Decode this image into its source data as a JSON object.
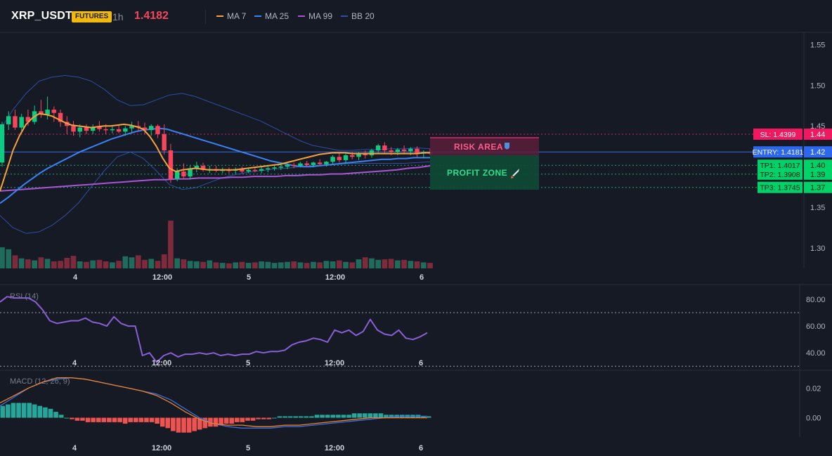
{
  "header": {
    "symbol": "XRP_USDT",
    "badge": "FUTURES",
    "timeframe": "1h",
    "last_price": "1.4182",
    "indicators": [
      {
        "label": "MA 7",
        "color": "#f7a23b"
      },
      {
        "label": "MA 25",
        "color": "#3b82f6"
      },
      {
        "label": "MA 99",
        "color": "#a855d6"
      },
      {
        "label": "BB 20",
        "color": "#2d4fa3"
      }
    ]
  },
  "colors": {
    "up": "#0ecb81",
    "down": "#f6465d",
    "volume_up": "#1f6b5c",
    "volume_down": "#7d2a3a",
    "rsi": "#8a5fd6",
    "macd": "#3b6fe0",
    "signal": "#f0822a"
  },
  "zones": {
    "risk_label": "RISK AREA",
    "profit_label": "PROFIT ZONE"
  },
  "price_tags": [
    {
      "id": "sl",
      "label": "SL: 1.4399",
      "axis": "1.44",
      "price": 1.4399,
      "color": "#f0195f"
    },
    {
      "id": "entry",
      "label": "ENTRY: 1.4181",
      "axis": "1.42",
      "price": 1.4181,
      "color": "#2d67f0"
    },
    {
      "id": "tp1",
      "label": "TP1: 1.4017",
      "axis": "1.40",
      "price": 1.4017,
      "color": "#00d26a"
    },
    {
      "id": "tp2",
      "label": "TP2: 1.3908",
      "axis": "1.39",
      "price": 1.3908,
      "color": "#00d26a"
    },
    {
      "id": "tp3",
      "label": "TP3: 1.3745",
      "axis": "1.37",
      "price": 1.3745,
      "color": "#00d26a"
    }
  ],
  "chart_data": [
    {
      "type": "candlestick",
      "pane": "price",
      "title": "",
      "x_ticks": [
        "4",
        "12:00",
        "5",
        "12:00",
        "6"
      ],
      "y_ticks": [
        "1.55",
        "1.50",
        "1.45",
        "1.40",
        "1.35",
        "1.30"
      ],
      "ylim": [
        1.275,
        1.565
      ],
      "candles_ohlc": [
        [
          1.405,
          1.455,
          1.4,
          1.452
        ],
        [
          1.452,
          1.468,
          1.445,
          1.462
        ],
        [
          1.462,
          1.47,
          1.445,
          1.448
        ],
        [
          1.448,
          1.465,
          1.444,
          1.461
        ],
        [
          1.461,
          1.47,
          1.45,
          1.455
        ],
        [
          1.455,
          1.475,
          1.452,
          1.468
        ],
        [
          1.468,
          1.482,
          1.46,
          1.464
        ],
        [
          1.464,
          1.486,
          1.458,
          1.47
        ],
        [
          1.47,
          1.474,
          1.455,
          1.466
        ],
        [
          1.466,
          1.47,
          1.449,
          1.455
        ],
        [
          1.455,
          1.462,
          1.44,
          1.45
        ],
        [
          1.45,
          1.456,
          1.438,
          1.443
        ],
        [
          1.443,
          1.452,
          1.436,
          1.448
        ],
        [
          1.448,
          1.452,
          1.44,
          1.444
        ],
        [
          1.444,
          1.452,
          1.44,
          1.449
        ],
        [
          1.449,
          1.456,
          1.443,
          1.446
        ],
        [
          1.446,
          1.452,
          1.44,
          1.445
        ],
        [
          1.445,
          1.451,
          1.441,
          1.446
        ],
        [
          1.446,
          1.451,
          1.441,
          1.443
        ],
        [
          1.443,
          1.45,
          1.438,
          1.447
        ],
        [
          1.447,
          1.455,
          1.442,
          1.45
        ],
        [
          1.45,
          1.456,
          1.444,
          1.448
        ],
        [
          1.448,
          1.454,
          1.44,
          1.445
        ],
        [
          1.445,
          1.452,
          1.438,
          1.45
        ],
        [
          1.45,
          1.452,
          1.435,
          1.44
        ],
        [
          1.44,
          1.452,
          1.415,
          1.42
        ],
        [
          1.42,
          1.428,
          1.38,
          1.385
        ],
        [
          1.385,
          1.398,
          1.382,
          1.394
        ],
        [
          1.394,
          1.404,
          1.385,
          1.388
        ],
        [
          1.388,
          1.401,
          1.384,
          1.398
        ],
        [
          1.398,
          1.406,
          1.393,
          1.401
        ],
        [
          1.401,
          1.405,
          1.394,
          1.396
        ],
        [
          1.396,
          1.401,
          1.392,
          1.397
        ],
        [
          1.397,
          1.401,
          1.393,
          1.395
        ],
        [
          1.395,
          1.399,
          1.392,
          1.396
        ],
        [
          1.396,
          1.399,
          1.392,
          1.395
        ],
        [
          1.395,
          1.399,
          1.391,
          1.397
        ],
        [
          1.397,
          1.4,
          1.392,
          1.394
        ],
        [
          1.394,
          1.399,
          1.392,
          1.396
        ],
        [
          1.396,
          1.399,
          1.393,
          1.395
        ],
        [
          1.395,
          1.4,
          1.392,
          1.397
        ],
        [
          1.397,
          1.4,
          1.393,
          1.398
        ],
        [
          1.398,
          1.401,
          1.395,
          1.399
        ],
        [
          1.399,
          1.403,
          1.396,
          1.4
        ],
        [
          1.4,
          1.404,
          1.397,
          1.402
        ],
        [
          1.402,
          1.405,
          1.398,
          1.401
        ],
        [
          1.401,
          1.406,
          1.399,
          1.404
        ],
        [
          1.404,
          1.407,
          1.4,
          1.402
        ],
        [
          1.402,
          1.406,
          1.399,
          1.405
        ],
        [
          1.405,
          1.409,
          1.402,
          1.403
        ],
        [
          1.403,
          1.407,
          1.4,
          1.406
        ],
        [
          1.406,
          1.414,
          1.403,
          1.412
        ],
        [
          1.412,
          1.418,
          1.405,
          1.408
        ],
        [
          1.408,
          1.416,
          1.404,
          1.414
        ],
        [
          1.414,
          1.418,
          1.409,
          1.412
        ],
        [
          1.412,
          1.418,
          1.408,
          1.416
        ],
        [
          1.416,
          1.42,
          1.41,
          1.414
        ],
        [
          1.414,
          1.422,
          1.411,
          1.42
        ],
        [
          1.42,
          1.428,
          1.416,
          1.426
        ],
        [
          1.426,
          1.43,
          1.417,
          1.42
        ],
        [
          1.42,
          1.424,
          1.414,
          1.418
        ],
        [
          1.418,
          1.423,
          1.414,
          1.421
        ],
        [
          1.421,
          1.426,
          1.416,
          1.419
        ],
        [
          1.419,
          1.424,
          1.414,
          1.422
        ],
        [
          1.422,
          1.425,
          1.412,
          1.416
        ],
        [
          1.416,
          1.42,
          1.41,
          1.418
        ],
        [
          1.418,
          1.422,
          1.414,
          1.416
        ]
      ],
      "volume": [
        42,
        38,
        26,
        20,
        18,
        16,
        22,
        19,
        14,
        15,
        21,
        25,
        14,
        13,
        16,
        17,
        14,
        12,
        15,
        24,
        22,
        26,
        17,
        19,
        15,
        28,
        95,
        20,
        18,
        15,
        14,
        13,
        16,
        12,
        11,
        10,
        12,
        13,
        11,
        12,
        14,
        13,
        11,
        12,
        13,
        14,
        12,
        11,
        13,
        12,
        15,
        14,
        16,
        13,
        12,
        18,
        22,
        20,
        17,
        18,
        19,
        16,
        17,
        15,
        14,
        12,
        11
      ],
      "series": [
        {
          "name": "MA 7",
          "values": [
            1.37,
            1.395,
            1.42,
            1.438,
            1.452,
            1.46,
            1.465,
            1.464,
            1.462,
            1.458,
            1.454,
            1.451,
            1.45,
            1.449,
            1.448,
            1.449,
            1.45,
            1.45,
            1.451,
            1.452,
            1.451,
            1.449,
            1.446,
            1.437,
            1.425,
            1.41,
            1.398,
            1.394,
            1.396,
            1.397,
            1.398,
            1.397,
            1.396,
            1.396,
            1.396,
            1.396,
            1.396,
            1.397,
            1.398,
            1.399,
            1.4,
            1.401,
            1.402,
            1.403,
            1.405,
            1.407,
            1.409,
            1.411,
            1.413,
            1.415,
            1.416,
            1.417,
            1.417,
            1.417,
            1.416,
            1.416,
            1.416,
            1.416,
            1.416,
            1.416,
            1.416,
            1.416,
            1.416,
            1.416,
            1.416,
            1.417,
            1.417
          ]
        },
        {
          "name": "MA 25",
          "values": [
            1.355,
            1.362,
            1.37,
            1.378,
            1.385,
            1.392,
            1.398,
            1.403,
            1.408,
            1.413,
            1.418,
            1.422,
            1.426,
            1.43,
            1.434,
            1.437,
            1.44,
            1.443,
            1.445,
            1.446,
            1.447,
            1.446,
            1.443,
            1.44,
            1.437,
            1.434,
            1.431,
            1.428,
            1.425,
            1.422,
            1.419,
            1.416,
            1.413,
            1.41,
            1.407,
            1.405,
            1.403,
            1.401,
            1.4,
            1.4,
            1.401,
            1.402,
            1.403,
            1.404,
            1.405,
            1.406,
            1.407,
            1.408,
            1.409,
            1.409,
            1.41,
            1.41,
            1.411,
            1.411,
            1.411
          ]
        },
        {
          "name": "MA 99",
          "values": [
            1.37,
            1.371,
            1.372,
            1.373,
            1.374,
            1.375,
            1.376,
            1.377,
            1.378,
            1.379,
            1.38,
            1.381,
            1.382,
            1.383,
            1.384,
            1.384,
            1.385,
            1.385,
            1.386,
            1.386,
            1.386,
            1.387,
            1.387,
            1.388,
            1.388,
            1.388,
            1.389,
            1.389,
            1.39,
            1.39,
            1.391,
            1.391,
            1.392,
            1.393,
            1.394,
            1.395,
            1.396,
            1.398,
            1.399,
            1.401
          ]
        },
        {
          "name": "BB 20 upper",
          "values": [
            1.445,
            1.47,
            1.49,
            1.505,
            1.51,
            1.512,
            1.51,
            1.505,
            1.495,
            1.482,
            1.475,
            1.476,
            1.482,
            1.488,
            1.49,
            1.486,
            1.48,
            1.474,
            1.468,
            1.462,
            1.456,
            1.448,
            1.44,
            1.432,
            1.426,
            1.423,
            1.42,
            1.42,
            1.421,
            1.421,
            1.422,
            1.422,
            1.423,
            1.422
          ]
        },
        {
          "name": "BB 20 lower",
          "values": [
            1.34,
            1.325,
            1.318,
            1.32,
            1.328,
            1.34,
            1.355,
            1.375,
            1.395,
            1.412,
            1.418,
            1.41,
            1.395,
            1.378,
            1.372,
            1.374,
            1.38,
            1.386,
            1.39,
            1.393,
            1.395,
            1.397,
            1.398,
            1.4,
            1.401,
            1.402,
            1.403,
            1.404,
            1.404,
            1.404,
            1.404,
            1.404,
            1.405,
            1.406
          ]
        }
      ]
    },
    {
      "type": "line",
      "pane": "rsi",
      "title": "RSI (14)",
      "x_ticks": [
        "4",
        "12:00",
        "5",
        "12:00",
        "6"
      ],
      "y_ticks": [
        "80.00",
        "60.00",
        "40.00"
      ],
      "ylim": [
        27,
        91
      ],
      "reference_lines": [
        70,
        30
      ],
      "series": [
        {
          "name": "RSI (14)",
          "values": [
            78,
            82,
            81,
            81,
            81,
            78,
            72,
            64,
            62,
            63,
            64,
            64,
            66,
            63,
            62,
            60,
            67,
            62,
            60,
            60,
            38,
            40,
            33,
            38,
            40,
            37,
            39,
            39,
            40,
            39,
            40,
            38,
            39,
            38,
            39,
            39,
            41,
            40,
            41,
            41,
            42,
            46,
            48,
            49,
            51,
            50,
            48,
            57,
            55,
            57,
            53,
            56,
            65,
            57,
            54,
            53,
            57,
            51,
            50,
            52,
            55
          ]
        }
      ]
    },
    {
      "type": "bar+line",
      "pane": "macd",
      "title": "MACD (12, 26, 9)",
      "x_ticks": [
        "4",
        "12:00",
        "5",
        "12:00",
        "6"
      ],
      "y_ticks": [
        "0.02",
        "0.00"
      ],
      "ylim": [
        -0.013,
        0.032
      ],
      "histogram": [
        0.008,
        0.009,
        0.01,
        0.01,
        0.01,
        0.01,
        0.009,
        0.008,
        0.007,
        0.006,
        0.004,
        0.002,
        0.0,
        -0.001,
        -0.002,
        -0.002,
        -0.003,
        -0.003,
        -0.003,
        -0.003,
        -0.003,
        -0.003,
        -0.003,
        -0.004,
        -0.003,
        -0.003,
        -0.003,
        -0.003,
        -0.003,
        -0.004,
        -0.006,
        -0.007,
        -0.009,
        -0.01,
        -0.01,
        -0.01,
        -0.009,
        -0.008,
        -0.007,
        -0.006,
        -0.006,
        -0.005,
        -0.004,
        -0.004,
        -0.003,
        -0.003,
        -0.002,
        -0.002,
        -0.001,
        -0.001,
        -0.001,
        0.0,
        0.001,
        0.001,
        0.001,
        0.001,
        0.001,
        0.001,
        0.001,
        0.002,
        0.002,
        0.002,
        0.002,
        0.002,
        0.002,
        0.002,
        0.003,
        0.003,
        0.003,
        0.003,
        0.003,
        0.003,
        0.002,
        0.002,
        0.002,
        0.002,
        0.002,
        0.002,
        0.002,
        0.001,
        0.001
      ],
      "series": [
        {
          "name": "MACD",
          "values": [
            0.008,
            0.014,
            0.02,
            0.024,
            0.026,
            0.027,
            0.026,
            0.024,
            0.022,
            0.02,
            0.018,
            0.016,
            0.012,
            0.006,
            0.0,
            -0.004,
            -0.006,
            -0.007,
            -0.007,
            -0.007,
            -0.006,
            -0.006,
            -0.005,
            -0.004,
            -0.003,
            -0.002,
            -0.001,
            0.0,
            0.001,
            0.001,
            0.001
          ]
        },
        {
          "name": "Signal",
          "values": [
            0.01,
            0.015,
            0.02,
            0.024,
            0.027,
            0.027,
            0.026,
            0.024,
            0.022,
            0.02,
            0.018,
            0.015,
            0.01,
            0.004,
            -0.001,
            -0.004,
            -0.005,
            -0.005,
            -0.006,
            -0.006,
            -0.005,
            -0.005,
            -0.004,
            -0.003,
            -0.002,
            -0.001,
            0.0,
            0.0,
            0.0,
            0.0,
            0.0
          ]
        }
      ]
    }
  ]
}
